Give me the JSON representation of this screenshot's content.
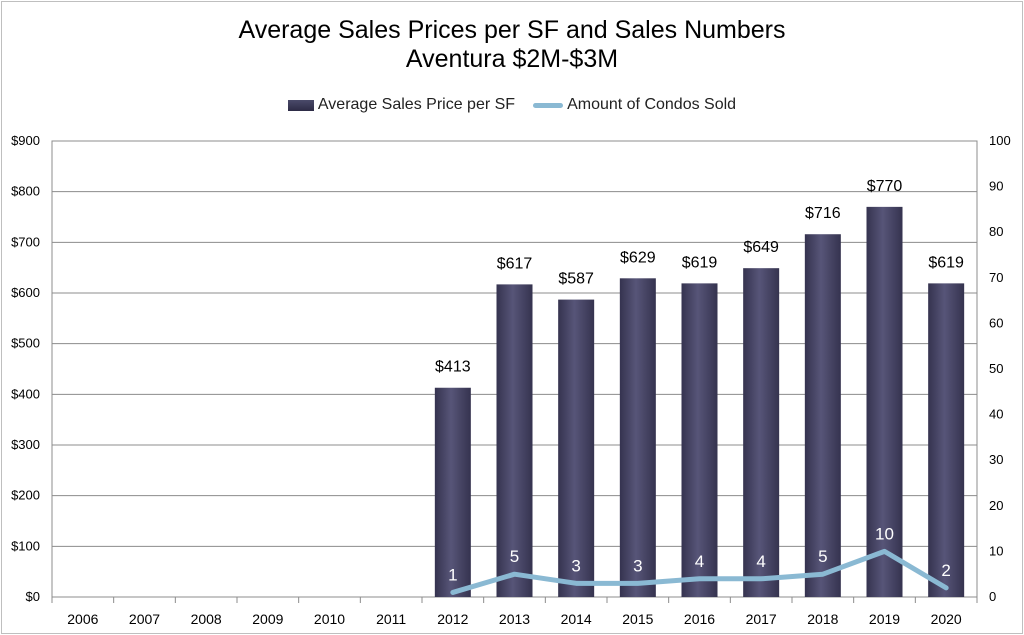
{
  "colors": {
    "bar": "#35334f",
    "bar_highlight": "#575578",
    "line": "#8ab9d3",
    "grid": "#8c8c8c",
    "line_label": "#ffffff"
  },
  "chart_data": {
    "type": "bar",
    "title": "Average Sales Prices per SF and Sales Numbers",
    "subtitle": "Aventura $2M-$3M",
    "categories": [
      "2006",
      "2007",
      "2008",
      "2009",
      "2010",
      "2011",
      "2012",
      "2013",
      "2014",
      "2015",
      "2016",
      "2017",
      "2018",
      "2019",
      "2020"
    ],
    "series": [
      {
        "name": "Average Sales Price per SF",
        "type": "bar",
        "axis": "left",
        "values": [
          null,
          null,
          null,
          null,
          null,
          null,
          413,
          617,
          587,
          629,
          619,
          649,
          716,
          770,
          619
        ],
        "labels": [
          "",
          "",
          "",
          "",
          "",
          "",
          "$413",
          "$617",
          "$587",
          "$629",
          "$619",
          "$649",
          "$716",
          "$770",
          "$619"
        ]
      },
      {
        "name": "Amount of Condos Sold",
        "type": "line",
        "axis": "right",
        "values": [
          null,
          null,
          null,
          null,
          null,
          null,
          1,
          5,
          3,
          3,
          4,
          4,
          5,
          10,
          2
        ],
        "labels": [
          "",
          "",
          "",
          "",
          "",
          "",
          "1",
          "5",
          "3",
          "3",
          "4",
          "4",
          "5",
          "10",
          "2"
        ]
      }
    ],
    "y_left": {
      "ylim": [
        0,
        900
      ],
      "ticks": [
        0,
        100,
        200,
        300,
        400,
        500,
        600,
        700,
        800,
        900
      ],
      "tick_labels": [
        "$0",
        "$100",
        "$200",
        "$300",
        "$400",
        "$500",
        "$600",
        "$700",
        "$800",
        "$900"
      ]
    },
    "y_right": {
      "ylim": [
        0,
        100
      ],
      "ticks": [
        0,
        10,
        20,
        30,
        40,
        50,
        60,
        70,
        80,
        90,
        100
      ],
      "tick_labels": [
        "0",
        "10",
        "20",
        "30",
        "40",
        "50",
        "60",
        "70",
        "80",
        "90",
        "100"
      ]
    },
    "grid": true,
    "legend_position": "top"
  }
}
